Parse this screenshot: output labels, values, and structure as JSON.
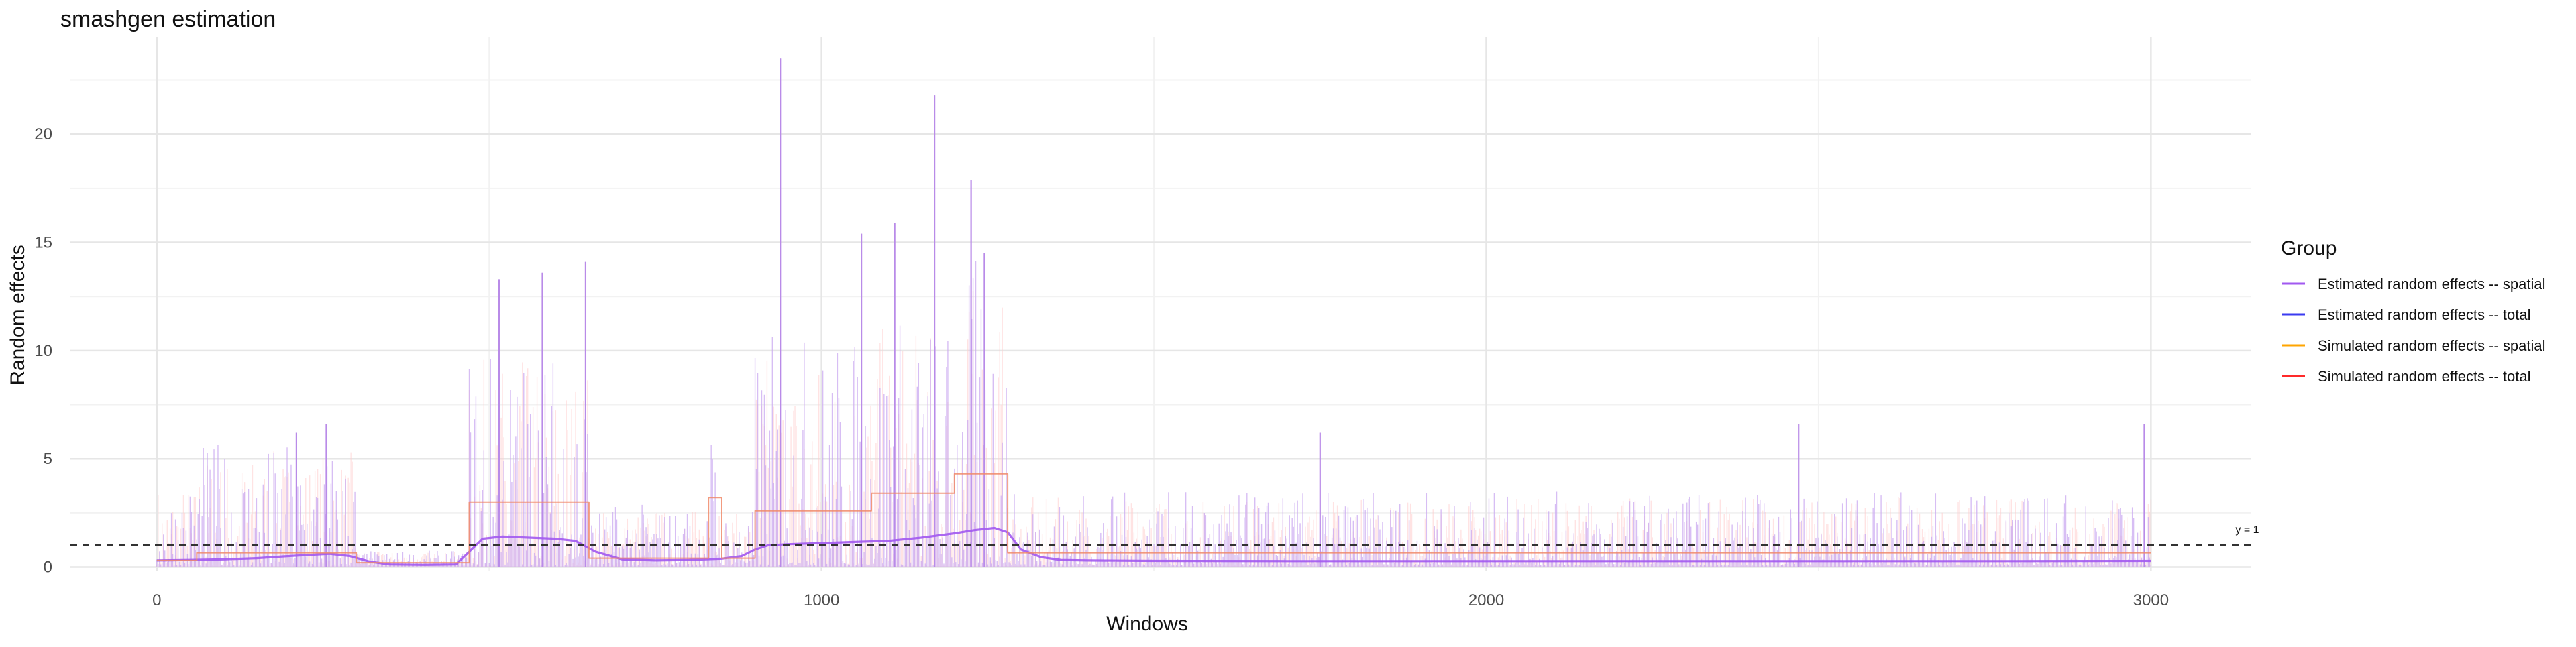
{
  "chart_data": {
    "type": "line",
    "title": "smashgen estimation",
    "xlabel": "Windows",
    "ylabel": "Random effects",
    "xlim": [
      -130,
      3150
    ],
    "ylim": [
      -0.2,
      24.5
    ],
    "x_ticks": [
      0,
      1000,
      2000,
      3000
    ],
    "y_ticks": [
      0,
      5,
      10,
      15,
      20
    ],
    "grid": true,
    "legend_position": "right",
    "legend_title": "Group",
    "reference_line": {
      "y": 1,
      "label": "y = 1",
      "style": "dashed"
    },
    "colors": {
      "Estimated random effects -- spatial": "#a259f0",
      "Estimated random effects -- total": "#3b3bf0",
      "Simulated random effects -- spatial": "#ffa500",
      "Simulated random effects -- total": "#ff2a2a"
    },
    "series": [
      {
        "name": "Estimated random effects -- spatial",
        "x": [
          0,
          50,
          100,
          150,
          200,
          260,
          290,
          320,
          350,
          400,
          450,
          470,
          490,
          520,
          560,
          600,
          630,
          660,
          700,
          750,
          800,
          850,
          880,
          900,
          920,
          950,
          1000,
          1050,
          1100,
          1150,
          1200,
          1230,
          1260,
          1280,
          1300,
          1330,
          1360,
          1400,
          1500,
          1700,
          2000,
          2300,
          2600,
          2800,
          3000
        ],
        "y": [
          0.3,
          0.32,
          0.35,
          0.4,
          0.5,
          0.6,
          0.5,
          0.25,
          0.12,
          0.1,
          0.12,
          0.7,
          1.3,
          1.4,
          1.35,
          1.3,
          1.2,
          0.7,
          0.35,
          0.3,
          0.32,
          0.38,
          0.5,
          0.8,
          1.0,
          1.05,
          1.1,
          1.15,
          1.2,
          1.35,
          1.55,
          1.7,
          1.8,
          1.6,
          0.8,
          0.45,
          0.32,
          0.3,
          0.28,
          0.27,
          0.27,
          0.27,
          0.27,
          0.27,
          0.28
        ]
      },
      {
        "name": "Simulated random effects -- total",
        "x": [
          0,
          60,
          60,
          300,
          300,
          470,
          470,
          650,
          650,
          830,
          830,
          850,
          850,
          900,
          900,
          1075,
          1075,
          1200,
          1200,
          1280,
          1280,
          3000
        ],
        "y": [
          0.3,
          0.3,
          0.65,
          0.65,
          0.2,
          0.2,
          3.0,
          3.0,
          0.4,
          0.4,
          3.2,
          3.2,
          0.4,
          0.4,
          2.6,
          2.6,
          3.4,
          3.4,
          4.3,
          4.3,
          0.65,
          0.65
        ]
      }
    ],
    "spikes": {
      "description": "dense per-window random effect bars",
      "peaks": [
        {
          "x": 938,
          "y": 23.5
        },
        {
          "x": 1170,
          "y": 21.8
        },
        {
          "x": 1225,
          "y": 17.9
        },
        {
          "x": 1060,
          "y": 15.4
        },
        {
          "x": 1110,
          "y": 15.9
        },
        {
          "x": 580,
          "y": 13.6
        },
        {
          "x": 645,
          "y": 14.1
        },
        {
          "x": 515,
          "y": 13.3
        },
        {
          "x": 1245,
          "y": 14.5
        },
        {
          "x": 255,
          "y": 6.6
        },
        {
          "x": 210,
          "y": 6.2
        },
        {
          "x": 1750,
          "y": 6.2
        },
        {
          "x": 2470,
          "y": 6.6
        },
        {
          "x": 2990,
          "y": 6.6
        }
      ]
    }
  }
}
